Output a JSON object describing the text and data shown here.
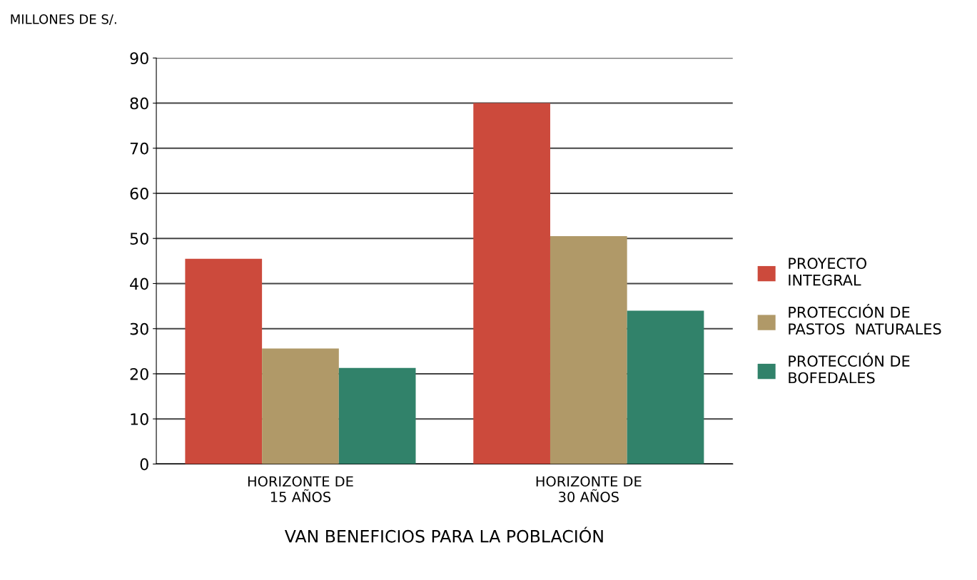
{
  "chart_data": {
    "type": "bar",
    "ylabel": "MILLONES DE S/.",
    "xlabel": "VAN BENEFICIOS PARA LA POBLACIÓN",
    "categories": [
      "HORIZONTE DE\n15 AÑOS",
      "HORIZONTE DE\n30 AÑOS"
    ],
    "series": [
      {
        "name": "PROYECTO\nINTEGRAL",
        "color": "#cc4a3c",
        "values": [
          45.5,
          80
        ]
      },
      {
        "name": "PROTECCIÓN DE\nPASTOS  NATURALES",
        "color": "#b09968",
        "values": [
          25.6,
          50.5
        ]
      },
      {
        "name": "PROTECCIÓN DE\nBOFEDALES",
        "color": "#31826a",
        "values": [
          21.3,
          34
        ]
      }
    ],
    "ylim": [
      0,
      90
    ],
    "yticks": [
      0,
      10,
      20,
      30,
      40,
      50,
      60,
      70,
      80,
      90
    ],
    "grid": "y",
    "legend": "right"
  }
}
